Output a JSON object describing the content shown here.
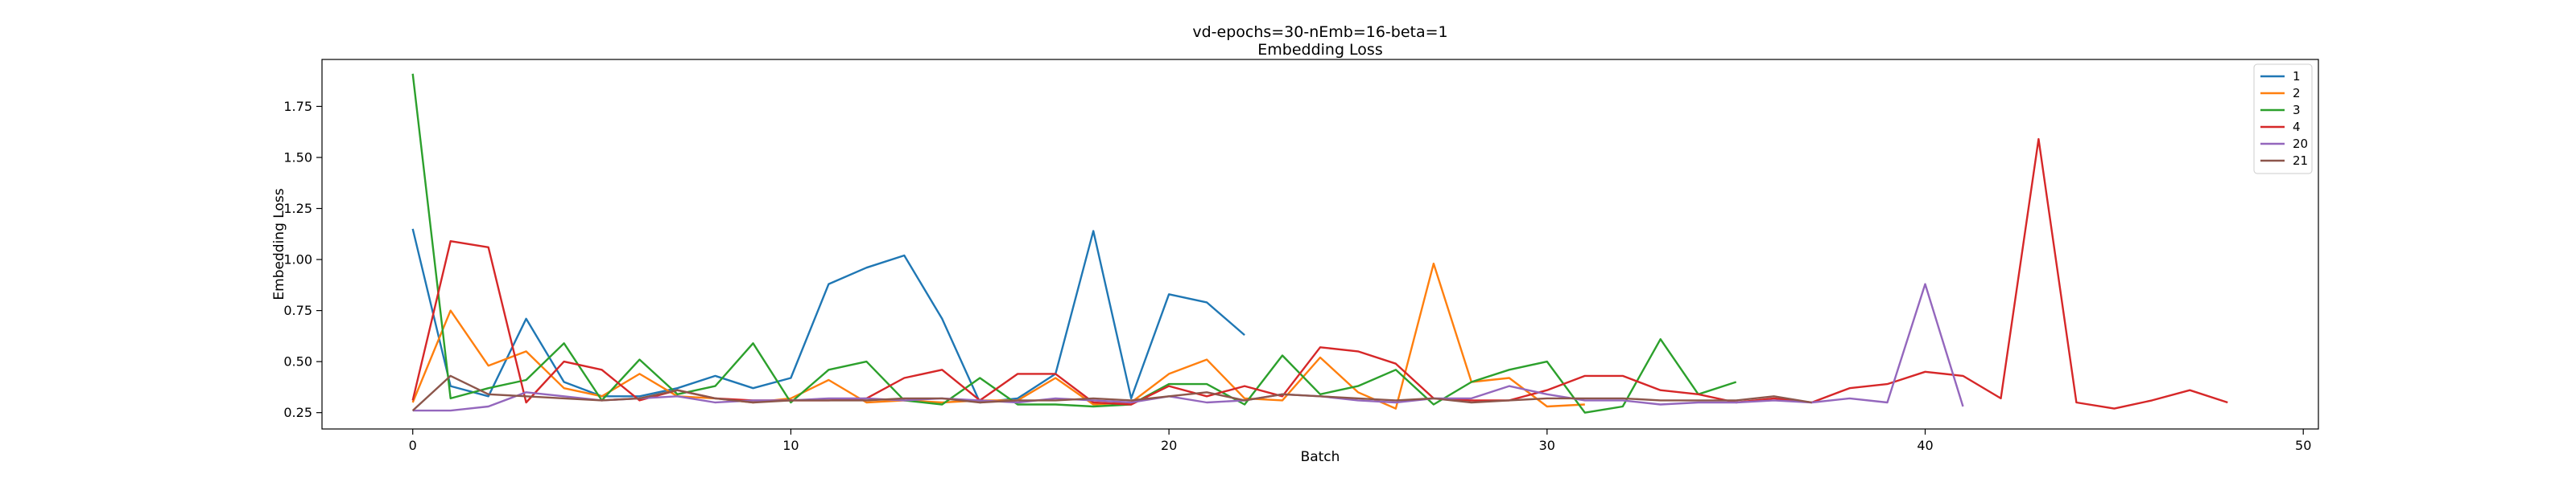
{
  "chart_data": {
    "type": "line",
    "title": "vd-epochs=30-nEmb=16-beta=1",
    "subtitle": "Embedding Loss",
    "xlabel": "Batch",
    "ylabel": "Embedding Loss",
    "xlim": [
      -2.4,
      50.4
    ],
    "ylim": [
      0.17,
      1.98
    ],
    "xticks": [
      0,
      10,
      20,
      30,
      40,
      50
    ],
    "yticks": [
      0.25,
      0.5,
      0.75,
      1.0,
      1.25,
      1.5,
      1.75
    ],
    "xtick_labels": [
      "0",
      "10",
      "20",
      "30",
      "40",
      "50"
    ],
    "ytick_labels": [
      "0.25",
      "0.50",
      "0.75",
      "1.00",
      "1.25",
      "1.50",
      "1.75"
    ],
    "grid": false,
    "legend_position": "top-right",
    "series": [
      {
        "name": "1",
        "color": "#1f77b4",
        "values": [
          1.15,
          0.38,
          0.33,
          0.71,
          0.4,
          0.33,
          0.33,
          0.37,
          0.43,
          0.37,
          0.42,
          0.88,
          0.96,
          1.02,
          0.71,
          0.3,
          0.32,
          0.44,
          1.14,
          0.32,
          0.83,
          0.79,
          0.63
        ]
      },
      {
        "name": "2",
        "color": "#ff7f0e",
        "values": [
          0.3,
          0.75,
          0.48,
          0.55,
          0.37,
          0.33,
          0.44,
          0.33,
          0.32,
          0.3,
          0.32,
          0.41,
          0.3,
          0.31,
          0.3,
          0.31,
          0.31,
          0.42,
          0.29,
          0.3,
          0.44,
          0.51,
          0.32,
          0.31,
          0.52,
          0.35,
          0.27,
          0.98,
          0.4,
          0.42,
          0.28,
          0.29
        ]
      },
      {
        "name": "3",
        "color": "#2ca02c",
        "values": [
          1.91,
          0.32,
          0.37,
          0.41,
          0.59,
          0.31,
          0.51,
          0.34,
          0.38,
          0.59,
          0.3,
          0.46,
          0.5,
          0.31,
          0.29,
          0.42,
          0.29,
          0.29,
          0.28,
          0.29,
          0.39,
          0.39,
          0.29,
          0.53,
          0.34,
          0.38,
          0.46,
          0.29,
          0.4,
          0.46,
          0.5,
          0.25,
          0.28,
          0.61,
          0.34,
          0.4
        ]
      },
      {
        "name": "4",
        "color": "#d62728",
        "values": [
          0.31,
          1.09,
          1.06,
          0.3,
          0.5,
          0.46,
          0.31,
          0.36,
          0.32,
          0.31,
          0.31,
          0.31,
          0.32,
          0.42,
          0.46,
          0.31,
          0.44,
          0.44,
          0.3,
          0.29,
          0.38,
          0.33,
          0.38,
          0.33,
          0.57,
          0.55,
          0.49,
          0.32,
          0.31,
          0.31,
          0.36,
          0.43,
          0.43,
          0.36,
          0.34,
          0.3,
          0.32,
          0.3,
          0.37,
          0.39,
          0.45,
          0.43,
          0.32,
          1.59,
          0.3,
          0.27,
          0.31,
          0.36,
          0.3
        ]
      },
      {
        "name": "20",
        "color": "#9467bd",
        "values": [
          0.26,
          0.26,
          0.28,
          0.35,
          0.33,
          0.31,
          0.32,
          0.33,
          0.3,
          0.31,
          0.31,
          0.32,
          0.32,
          0.31,
          0.32,
          0.31,
          0.3,
          0.32,
          0.31,
          0.3,
          0.33,
          0.3,
          0.31,
          0.34,
          0.33,
          0.31,
          0.3,
          0.32,
          0.32,
          0.38,
          0.34,
          0.31,
          0.31,
          0.29,
          0.3,
          0.3,
          0.31,
          0.3,
          0.32,
          0.3,
          0.88,
          0.28
        ]
      },
      {
        "name": "21",
        "color": "#8c564b",
        "values": [
          0.26,
          0.43,
          0.34,
          0.33,
          0.32,
          0.31,
          0.32,
          0.36,
          0.32,
          0.3,
          0.31,
          0.31,
          0.31,
          0.32,
          0.32,
          0.3,
          0.31,
          0.31,
          0.32,
          0.31,
          0.33,
          0.35,
          0.31,
          0.34,
          0.33,
          0.32,
          0.31,
          0.32,
          0.3,
          0.31,
          0.32,
          0.32,
          0.32,
          0.31,
          0.31,
          0.31,
          0.33,
          0.3
        ]
      }
    ]
  }
}
